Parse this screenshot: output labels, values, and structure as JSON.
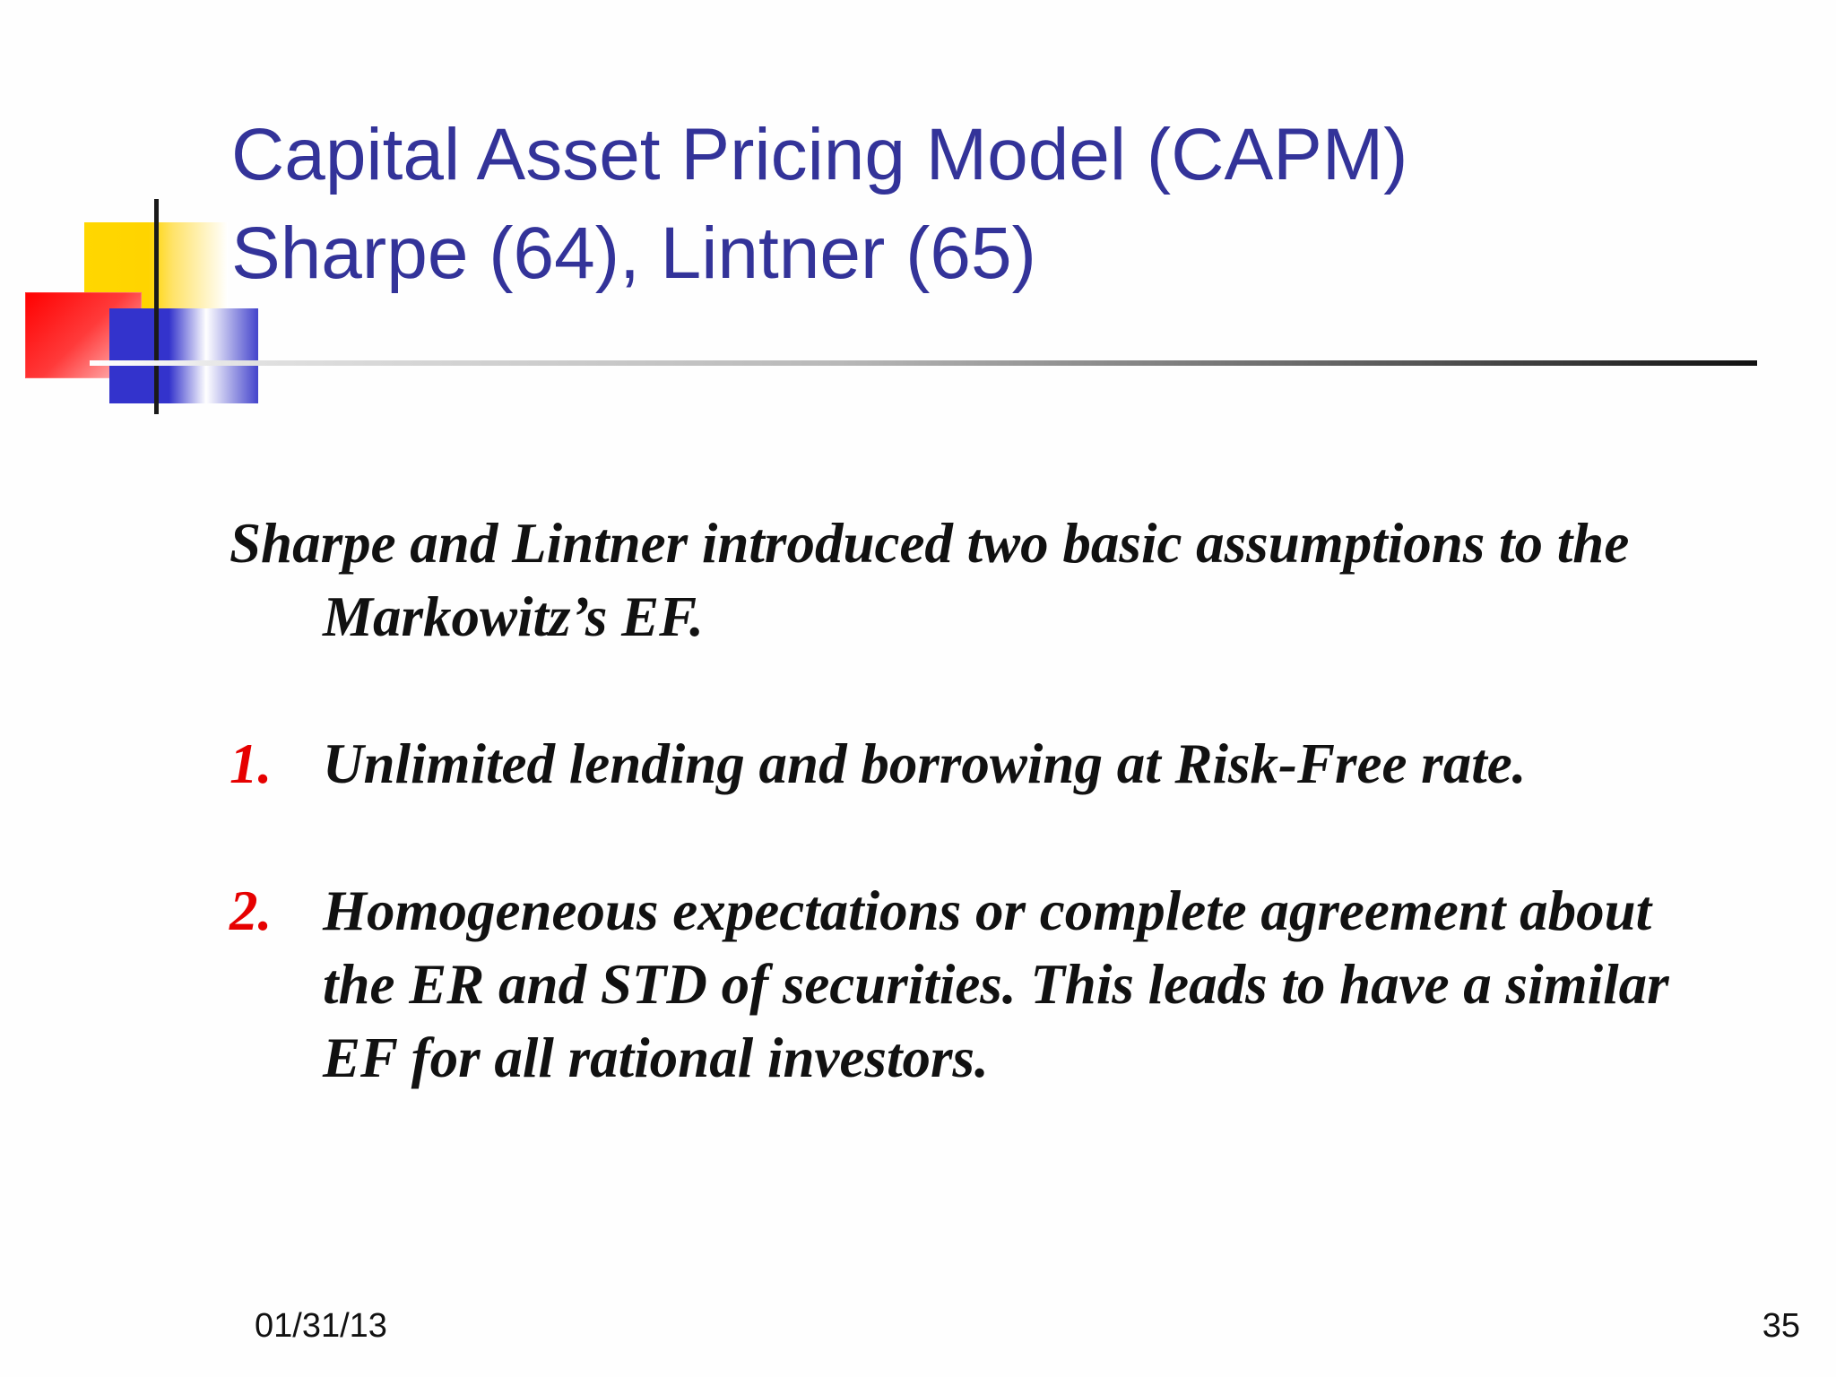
{
  "slide": {
    "title_line1": "Capital Asset Pricing Model (CAPM)",
    "title_line2": "Sharpe (64), Lintner (65)",
    "intro": "Sharpe and Lintner introduced two basic assumptions to the Markowitz’s EF.",
    "items": [
      {
        "number": "1.",
        "text": "Unlimited lending and borrowing at Risk-Free rate."
      },
      {
        "number": "2.",
        "text": "Homogeneous expectations or complete agreement about the ER and STD of securities. This leads to have a similar EF for all rational investors."
      }
    ],
    "footer_date": "01/31/13",
    "page_number": "35"
  },
  "colors": {
    "title": "#333399",
    "numbering": "#e60000",
    "body_text": "#111111",
    "deco_yellow": "#ffd700",
    "deco_red": "#ff0000",
    "deco_blue": "#3333cc"
  }
}
